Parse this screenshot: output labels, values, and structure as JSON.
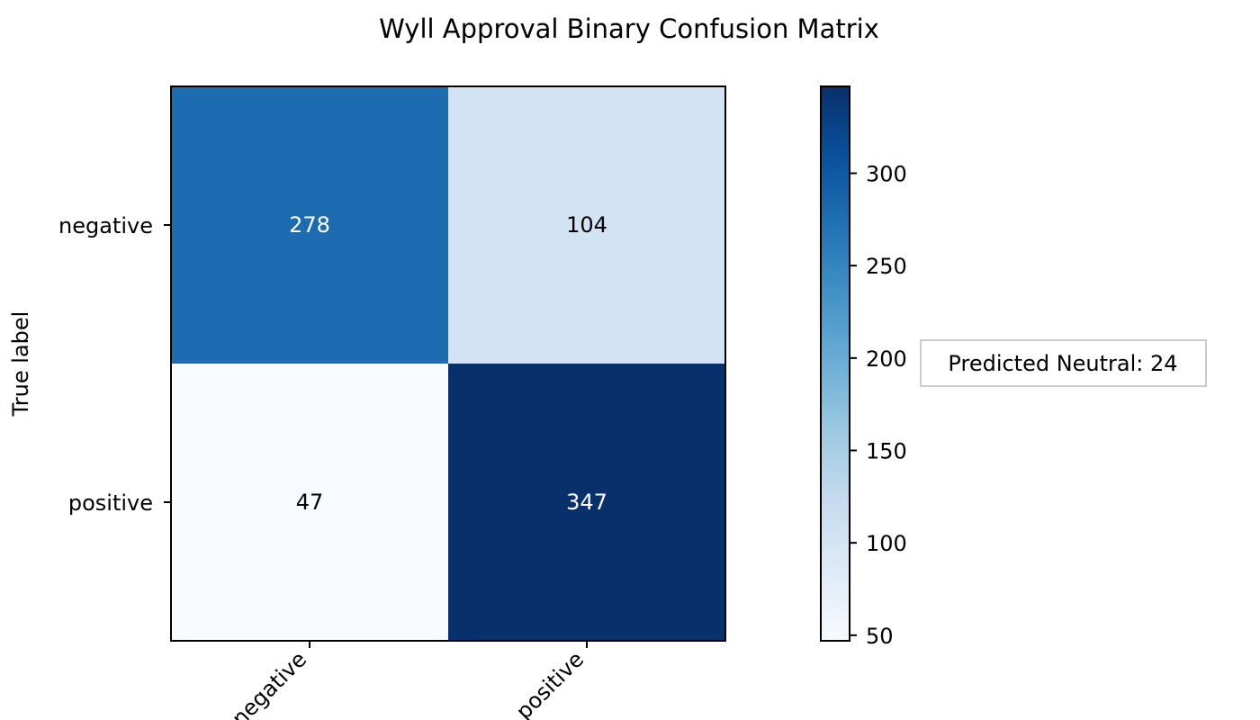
{
  "chart_data": {
    "type": "heatmap",
    "title": "Wyll Approval Binary Confusion Matrix",
    "ylabel": "True label",
    "xlabel": "",
    "rows": [
      "negative",
      "positive"
    ],
    "columns": [
      "negative",
      "positive"
    ],
    "values": [
      [
        278,
        104
      ],
      [
        47,
        347
      ]
    ],
    "colormap": "Blues",
    "color_range": [
      47,
      347
    ],
    "colorbar_ticks": [
      50,
      100,
      150,
      200,
      250,
      300
    ],
    "annotation": "Predicted Neutral: 24",
    "grid": false
  }
}
